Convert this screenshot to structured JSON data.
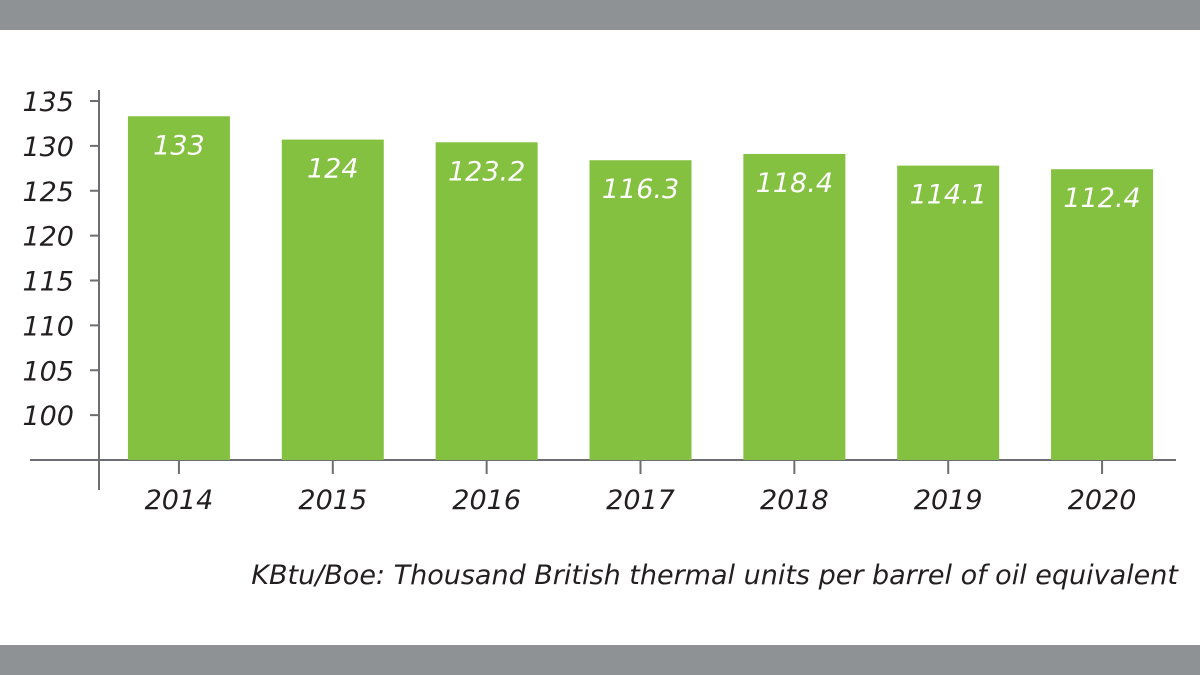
{
  "chart_data": {
    "type": "bar",
    "categories": [
      "2014",
      "2015",
      "2016",
      "2017",
      "2018",
      "2019",
      "2020"
    ],
    "values": [
      133,
      124,
      123.2,
      116.3,
      118.4,
      114.1,
      112.4
    ],
    "data_labels": [
      "133",
      "124",
      "123.2",
      "116.3",
      "118.4",
      "114.1",
      "112.4"
    ],
    "y_ticks": [
      100,
      105,
      110,
      115,
      120,
      125,
      130,
      135
    ],
    "bar_tops": [
      133.3,
      130.7,
      130.4,
      128.4,
      129.1,
      127.8,
      127.4
    ],
    "ylim": [
      95,
      135
    ],
    "title": "",
    "xlabel": "",
    "ylabel": "",
    "note": "KBtu/Boe: Thousand British thermal units per barrel of oil equivalent",
    "grid": false,
    "legend": "none"
  },
  "colors": {
    "bar": "#84c141",
    "axis": "#6d6e71",
    "band": "#8f9294",
    "value_label": "#ffffff"
  }
}
